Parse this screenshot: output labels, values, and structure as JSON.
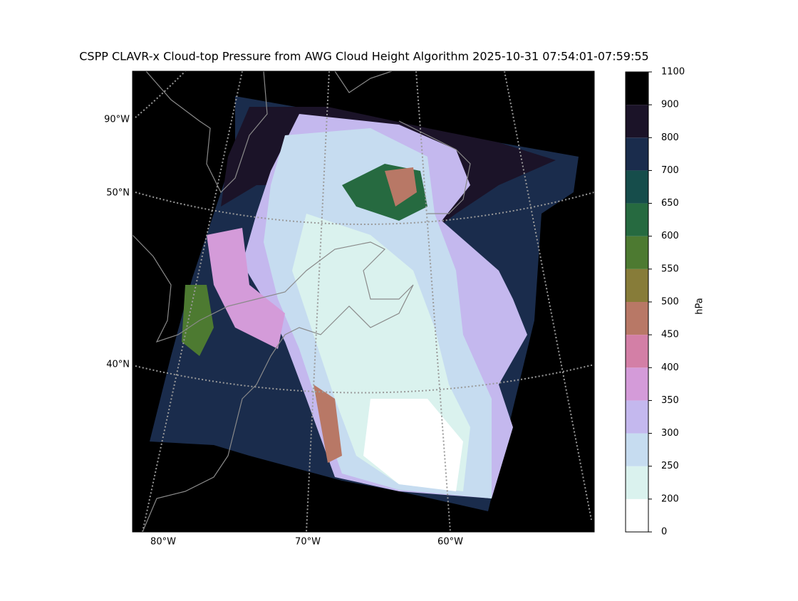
{
  "title": "CSPP CLAVR-x Cloud-top Pressure from AWG Cloud Height Algorithm 2025-10-31 07:54:01-07:59:55",
  "map": {
    "lat_labels": [
      "90°W",
      "50°N",
      "40°N"
    ],
    "lon_labels": [
      "80°W",
      "70°W",
      "60°W"
    ]
  },
  "colorbar": {
    "label": "hPa",
    "boundaries": [
      0,
      200,
      250,
      300,
      350,
      400,
      450,
      500,
      550,
      600,
      650,
      700,
      800,
      900,
      1100
    ],
    "colors": [
      "#ffffff",
      "#daf2ee",
      "#c6dcf0",
      "#c4b8ee",
      "#d49bd9",
      "#d37fa6",
      "#b87866",
      "#877c39",
      "#4d7a31",
      "#266a40",
      "#164d4b",
      "#1a2c4c",
      "#1b1328",
      "#000000"
    ]
  }
}
